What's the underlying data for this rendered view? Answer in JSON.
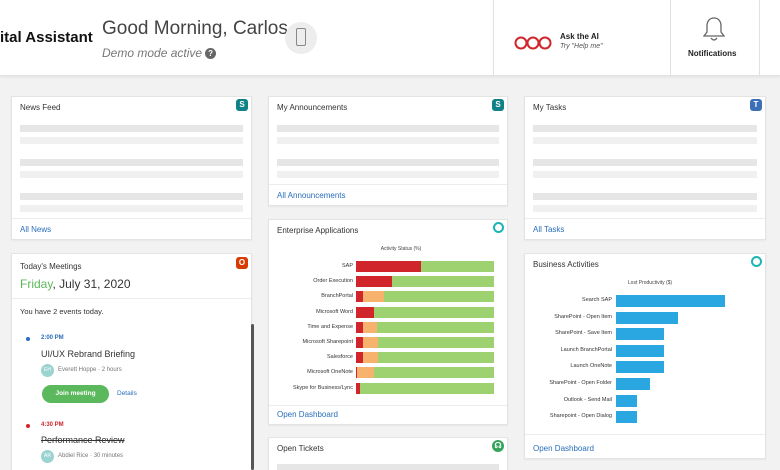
{
  "header": {
    "app_title": "ital Assistant",
    "greeting": "Good Morning, Carlos",
    "demo_mode": "Demo mode active",
    "help_icon": "?",
    "device_icon": "mobile-phone-icon",
    "ai_title": "Ask the AI",
    "ai_subtitle": "Try \"Help me\"",
    "notifications_label": "Notifications"
  },
  "news_feed": {
    "title": "News Feed",
    "link": "All News",
    "icon_letter": "S"
  },
  "announcements": {
    "title": "My Announcements",
    "link": "All Announcements",
    "icon_letter": "S"
  },
  "tasks": {
    "title": "My Tasks",
    "link": "All Tasks",
    "icon_letter": "T"
  },
  "meetings": {
    "title": "Today's Meetings",
    "day": "Friday",
    "date_rest": ", July 31, 2020",
    "events_summary": "You have 2 events today.",
    "icon_letter": "O",
    "items": [
      {
        "time": "2:00 PM",
        "title": "UI/UX Rebrand Briefing",
        "person": "Everett Hoppe",
        "initials": "EH",
        "duration": "2 hours",
        "join_label": "Join meeting",
        "details_label": "Details"
      },
      {
        "time": "4:30 PM",
        "title": "Performance Review",
        "person": "Abdiel Rice",
        "initials": "AR",
        "duration": "30 minutes"
      }
    ]
  },
  "enterprise_apps": {
    "title": "Enterprise Applications",
    "link": "Open Dashboard",
    "colors": {
      "red": "#d0262b",
      "orange": "#f7b26d",
      "green": "#9ed16f"
    },
    "chart_data": {
      "type": "bar",
      "orientation": "horizontal-stacked",
      "title": "Activity Status (%)",
      "categories": [
        "SAP",
        "Order Execution",
        "BranchPortal",
        "Microsoft Word",
        "Time and Expense",
        "Microsoft Sharepoint",
        "Salesforce",
        "Microsoft OneNote",
        "Skype for Business/Lync"
      ],
      "series": [
        {
          "color": "#d0262b",
          "values": [
            47,
            26,
            5,
            13,
            5,
            5,
            5,
            1,
            3
          ]
        },
        {
          "color": "#f7b26d",
          "values": [
            0,
            0,
            15,
            0,
            10,
            11,
            11,
            12,
            0
          ]
        },
        {
          "color": "#9ed16f",
          "values": [
            53,
            74,
            80,
            87,
            85,
            84,
            84,
            87,
            97
          ]
        }
      ],
      "xlim": [
        0,
        100
      ]
    }
  },
  "business_activities": {
    "title": "Business Activities",
    "link": "Open Dashboard",
    "bar_color": "#2aa7e0",
    "chart_data": {
      "type": "bar",
      "orientation": "horizontal",
      "title": "Lost Productivity ($)",
      "categories": [
        "Search SAP",
        "SharePoint - Open Item",
        "SharePoint - Save Item",
        "Launch BranchPortal",
        "Launch OneNote",
        "SharePoint - Open Folder",
        "Outlook - Send Mail",
        "Sharepoint - Open Dialog"
      ],
      "values": [
        100,
        57,
        44,
        44,
        44,
        31,
        19,
        19
      ]
    }
  },
  "open_tickets": {
    "title": "Open Tickets"
  }
}
